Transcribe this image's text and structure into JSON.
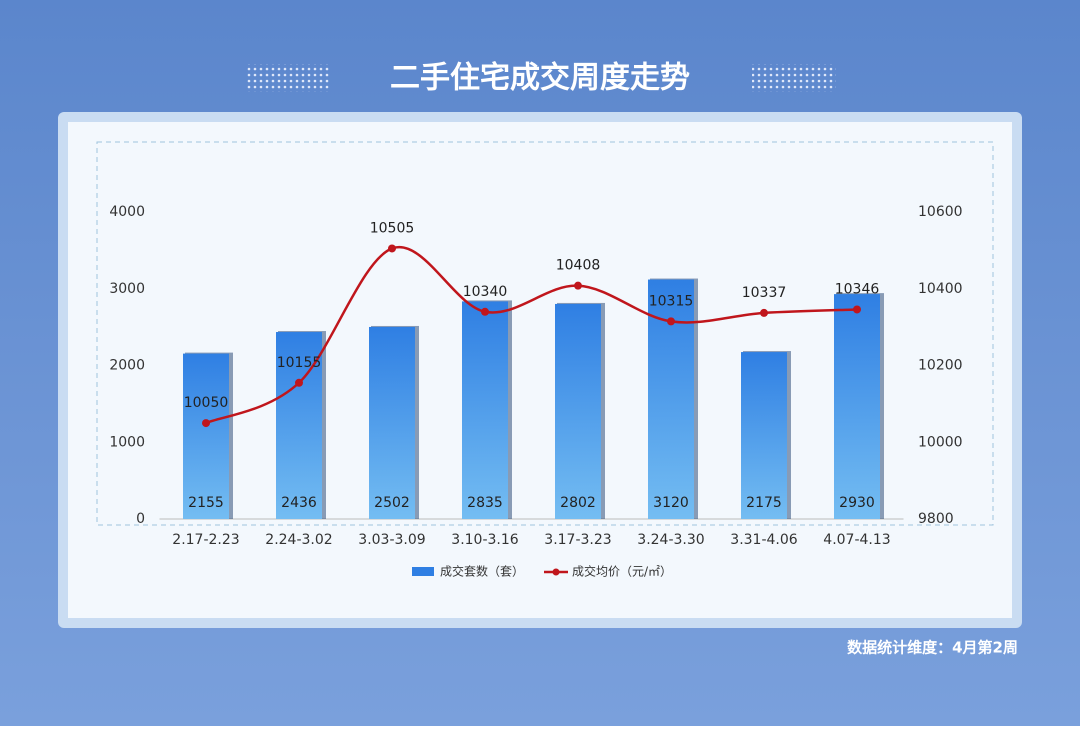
{
  "chart_data": {
    "type": "bar-line",
    "title": "二手住宅成交周度走势",
    "note": "数据统计维度：4月第2周",
    "categories": [
      "2.17-2.23",
      "2.24-3.02",
      "3.03-3.09",
      "3.10-3.16",
      "3.17-3.23",
      "3.24-3.30",
      "3.31-4.06",
      "4.07-4.13"
    ],
    "series": [
      {
        "name": "成交套数（套）",
        "type": "bar",
        "color": "#2f7fe3",
        "values": [
          2155,
          2436,
          2502,
          2835,
          2802,
          3120,
          2175,
          2930
        ]
      },
      {
        "name": "成交均价（元/㎡）",
        "type": "line",
        "axis": "y2",
        "color": "#c0161c",
        "values": [
          10050,
          10155,
          10505,
          10340,
          10408,
          10315,
          10337,
          10346
        ]
      }
    ],
    "ylim": [
      0,
      4000
    ],
    "yticks": [
      0,
      1000,
      2000,
      3000,
      4000
    ],
    "y2lim": [
      9800,
      10600
    ],
    "y2ticks": [
      9800,
      10000,
      10200,
      10400,
      10600
    ],
    "legend": "bottom"
  }
}
